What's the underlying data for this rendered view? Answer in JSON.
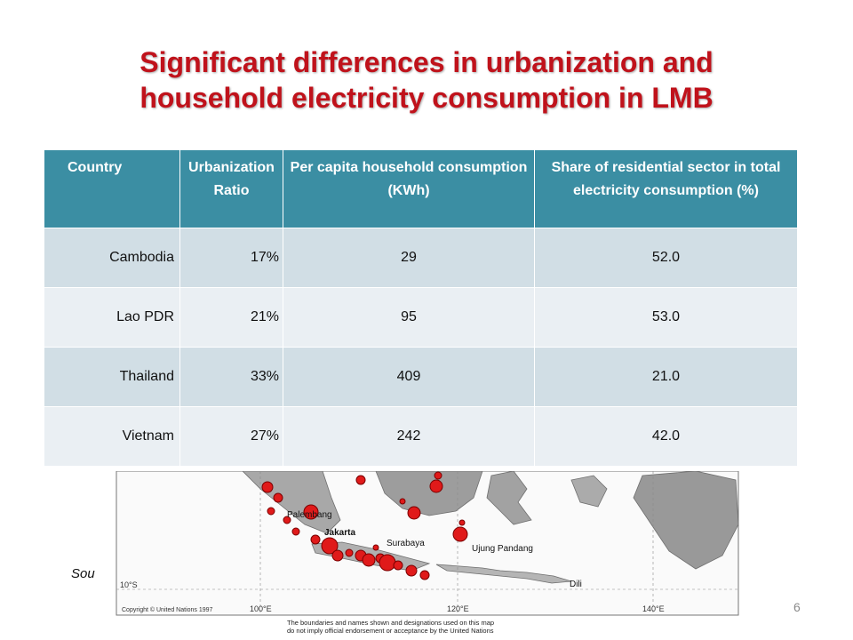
{
  "slide": {
    "title_line1": "Significant differences in urbanization and",
    "title_line2": "household electricity consumption in LMB",
    "source_label": "Sou",
    "page_number": "6"
  },
  "table": {
    "headers": [
      "Country",
      "Urbanization Ratio",
      "Per capita household consumption (KWh)",
      "Share of residential sector in total electricity consumption (%)"
    ],
    "rows": [
      [
        "Cambodia",
        "17%",
        "29",
        "52.0"
      ],
      [
        "Lao PDR",
        "21%",
        "95",
        "53.0"
      ],
      [
        "Thailand",
        "33%",
        "409",
        "21.0"
      ],
      [
        "Vietnam",
        "27%",
        "242",
        "42.0"
      ]
    ]
  },
  "map": {
    "place_labels": [
      "Palembang",
      "Jakarta",
      "Surabaya",
      "Ujung Pandang",
      "Dili"
    ],
    "latitude_label": "10°S",
    "longitude_labels": [
      "100°E",
      "120°E",
      "140°E"
    ],
    "copyright": "Copyright © United Nations 1997",
    "disclaimer_line1": "The boundaries and names shown and designations used on this map",
    "disclaimer_line2": "do not imply official endorsement or acceptance by the United Nations"
  },
  "colors": {
    "title": "#c0121b",
    "header_bg": "#3b8ea3",
    "row_odd": "#d1dee5",
    "row_even": "#eaeff3",
    "city_dot": "#e01a1a"
  }
}
